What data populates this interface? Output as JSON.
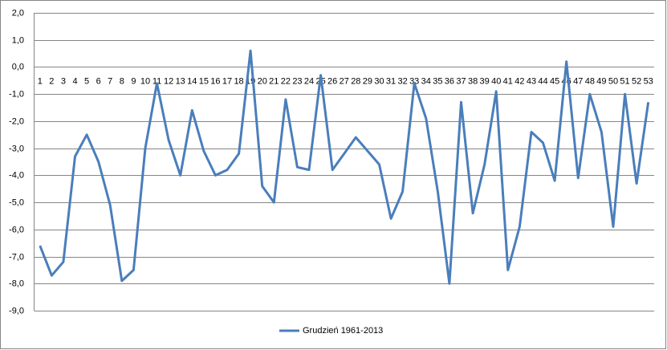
{
  "chart_data": {
    "type": "line",
    "categories": [
      "1",
      "2",
      "3",
      "4",
      "5",
      "6",
      "7",
      "8",
      "9",
      "10",
      "11",
      "12",
      "13",
      "14",
      "15",
      "16",
      "17",
      "18",
      "19",
      "20",
      "21",
      "22",
      "23",
      "24",
      "25",
      "26",
      "27",
      "28",
      "29",
      "30",
      "31",
      "32",
      "33",
      "34",
      "35",
      "36",
      "37",
      "38",
      "39",
      "40",
      "41",
      "42",
      "43",
      "44",
      "45",
      "46",
      "47",
      "48",
      "49",
      "50",
      "51",
      "52",
      "53"
    ],
    "series": [
      {
        "name": "Grudzień 1961-2013",
        "color": "#4a7ebb",
        "values": [
          -6.6,
          -7.7,
          -7.2,
          -3.3,
          -2.5,
          -3.5,
          -5.1,
          -7.9,
          -7.5,
          -3.0,
          -0.6,
          -2.7,
          -4.0,
          -1.6,
          -3.1,
          -4.0,
          -3.8,
          -3.2,
          0.6,
          -4.4,
          -5.0,
          -1.2,
          -3.7,
          -3.8,
          -0.3,
          -3.8,
          -3.2,
          -2.6,
          -3.1,
          -3.6,
          -5.6,
          -4.6,
          -0.6,
          -1.9,
          -4.6,
          -8.0,
          -1.3,
          -5.4,
          -3.6,
          -0.9,
          -7.5,
          -5.9,
          -2.4,
          -2.8,
          -4.2,
          0.2,
          -4.1,
          -1.0,
          -2.4,
          -5.9,
          -1.0,
          -4.3,
          -1.3
        ]
      }
    ],
    "ylim": [
      -9,
      2
    ],
    "yticks": [
      {
        "value": 2,
        "label": "2,0"
      },
      {
        "value": 1,
        "label": "1,0"
      },
      {
        "value": 0,
        "label": "0,0"
      },
      {
        "value": -1,
        "label": "-1,0"
      },
      {
        "value": -2,
        "label": "-2,0"
      },
      {
        "value": -3,
        "label": "-3,0"
      },
      {
        "value": -4,
        "label": "-4,0"
      },
      {
        "value": -5,
        "label": "-5,0"
      },
      {
        "value": -6,
        "label": "-6,0"
      },
      {
        "value": -7,
        "label": "-7,0"
      },
      {
        "value": -8,
        "label": "-8,0"
      },
      {
        "value": -9,
        "label": "-9,0"
      }
    ],
    "grid": true,
    "legend": "bottom"
  }
}
